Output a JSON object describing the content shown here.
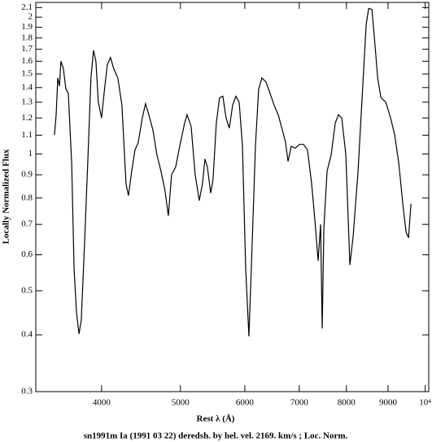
{
  "chart_data": {
    "type": "line",
    "title": "sn1991m Ia (1991 03 22) deredsh. by hel. vel.  2169. km/s ;  Loc. Norm.",
    "x_label": "Rest λ (Å)",
    "y_label": "Locally Normalized Flux",
    "log_x": true,
    "log_y": true,
    "color": "#000000",
    "x": [
      3500,
      3517,
      3533,
      3550,
      3565,
      3590,
      3615,
      3640,
      3675,
      3700,
      3725,
      3752,
      3776,
      3811,
      3846,
      3881,
      3909,
      3936,
      3963,
      4000,
      4028,
      4065,
      4102,
      4140,
      4188,
      4237,
      4286,
      4316,
      4356,
      4396,
      4437,
      4488,
      4530,
      4572,
      4625,
      4678,
      4732,
      4787,
      4832,
      4876,
      4933,
      4990,
      5060,
      5095,
      5154,
      5213,
      5274,
      5322,
      5360,
      5397,
      5447,
      5484,
      5535,
      5586,
      5638,
      5690,
      5743,
      5796,
      5850,
      5905,
      5960,
      6015,
      6070,
      6126,
      6183,
      6240,
      6298,
      6371,
      6444,
      6520,
      6595,
      6672,
      6734,
      6781,
      6843,
      6922,
      7003,
      7084,
      7166,
      7250,
      7316,
      7384,
      7436,
      7470,
      7505,
      7574,
      7662,
      7751,
      7823,
      7895,
      7987,
      8079,
      8154,
      8268,
      8384,
      8461,
      8520,
      8599,
      8658,
      8740,
      8821,
      8945,
      9067,
      9172,
      9278,
      9385,
      9472,
      9538,
      9604
    ],
    "values": [
      1.1,
      1.22,
      1.47,
      1.41,
      1.6,
      1.54,
      1.39,
      1.36,
      0.955,
      0.559,
      0.45,
      0.402,
      0.43,
      0.633,
      0.955,
      1.47,
      1.69,
      1.6,
      1.3,
      1.2,
      1.36,
      1.57,
      1.63,
      1.54,
      1.47,
      1.28,
      0.86,
      0.81,
      0.917,
      1.02,
      1.06,
      1.2,
      1.29,
      1.22,
      1.13,
      0.996,
      0.917,
      0.83,
      0.731,
      0.9,
      0.936,
      1.04,
      1.17,
      1.22,
      1.15,
      0.9,
      0.79,
      0.86,
      0.975,
      0.936,
      0.82,
      0.88,
      1.17,
      1.33,
      1.34,
      1.2,
      1.14,
      1.28,
      1.34,
      1.3,
      1.04,
      0.559,
      0.397,
      0.633,
      1.04,
      1.39,
      1.47,
      1.44,
      1.36,
      1.28,
      1.22,
      1.13,
      1.06,
      0.963,
      1.04,
      1.03,
      1.05,
      1.05,
      1.02,
      0.86,
      0.716,
      0.582,
      0.7,
      0.413,
      0.687,
      0.917,
      0.996,
      1.17,
      1.22,
      1.2,
      0.996,
      0.57,
      0.659,
      0.917,
      1.44,
      1.93,
      2.09,
      2.08,
      1.81,
      1.47,
      1.33,
      1.3,
      1.2,
      1.1,
      0.955,
      0.777,
      0.673,
      0.654,
      0.777
    ],
    "xlim": [
      3320,
      10100
    ],
    "ylim": [
      0.3,
      2.155
    ],
    "xticks": [
      4000,
      5000,
      6000,
      7000,
      8000,
      9000,
      {
        "value": 10000,
        "label": "10⁴"
      }
    ],
    "yticks": [
      0.3,
      0.4,
      0.5,
      0.6,
      0.7,
      0.8,
      0.9,
      1,
      1.1,
      1.2,
      1.3,
      1.4,
      1.5,
      1.6,
      1.7,
      1.8,
      1.9,
      2,
      2.1
    ]
  }
}
